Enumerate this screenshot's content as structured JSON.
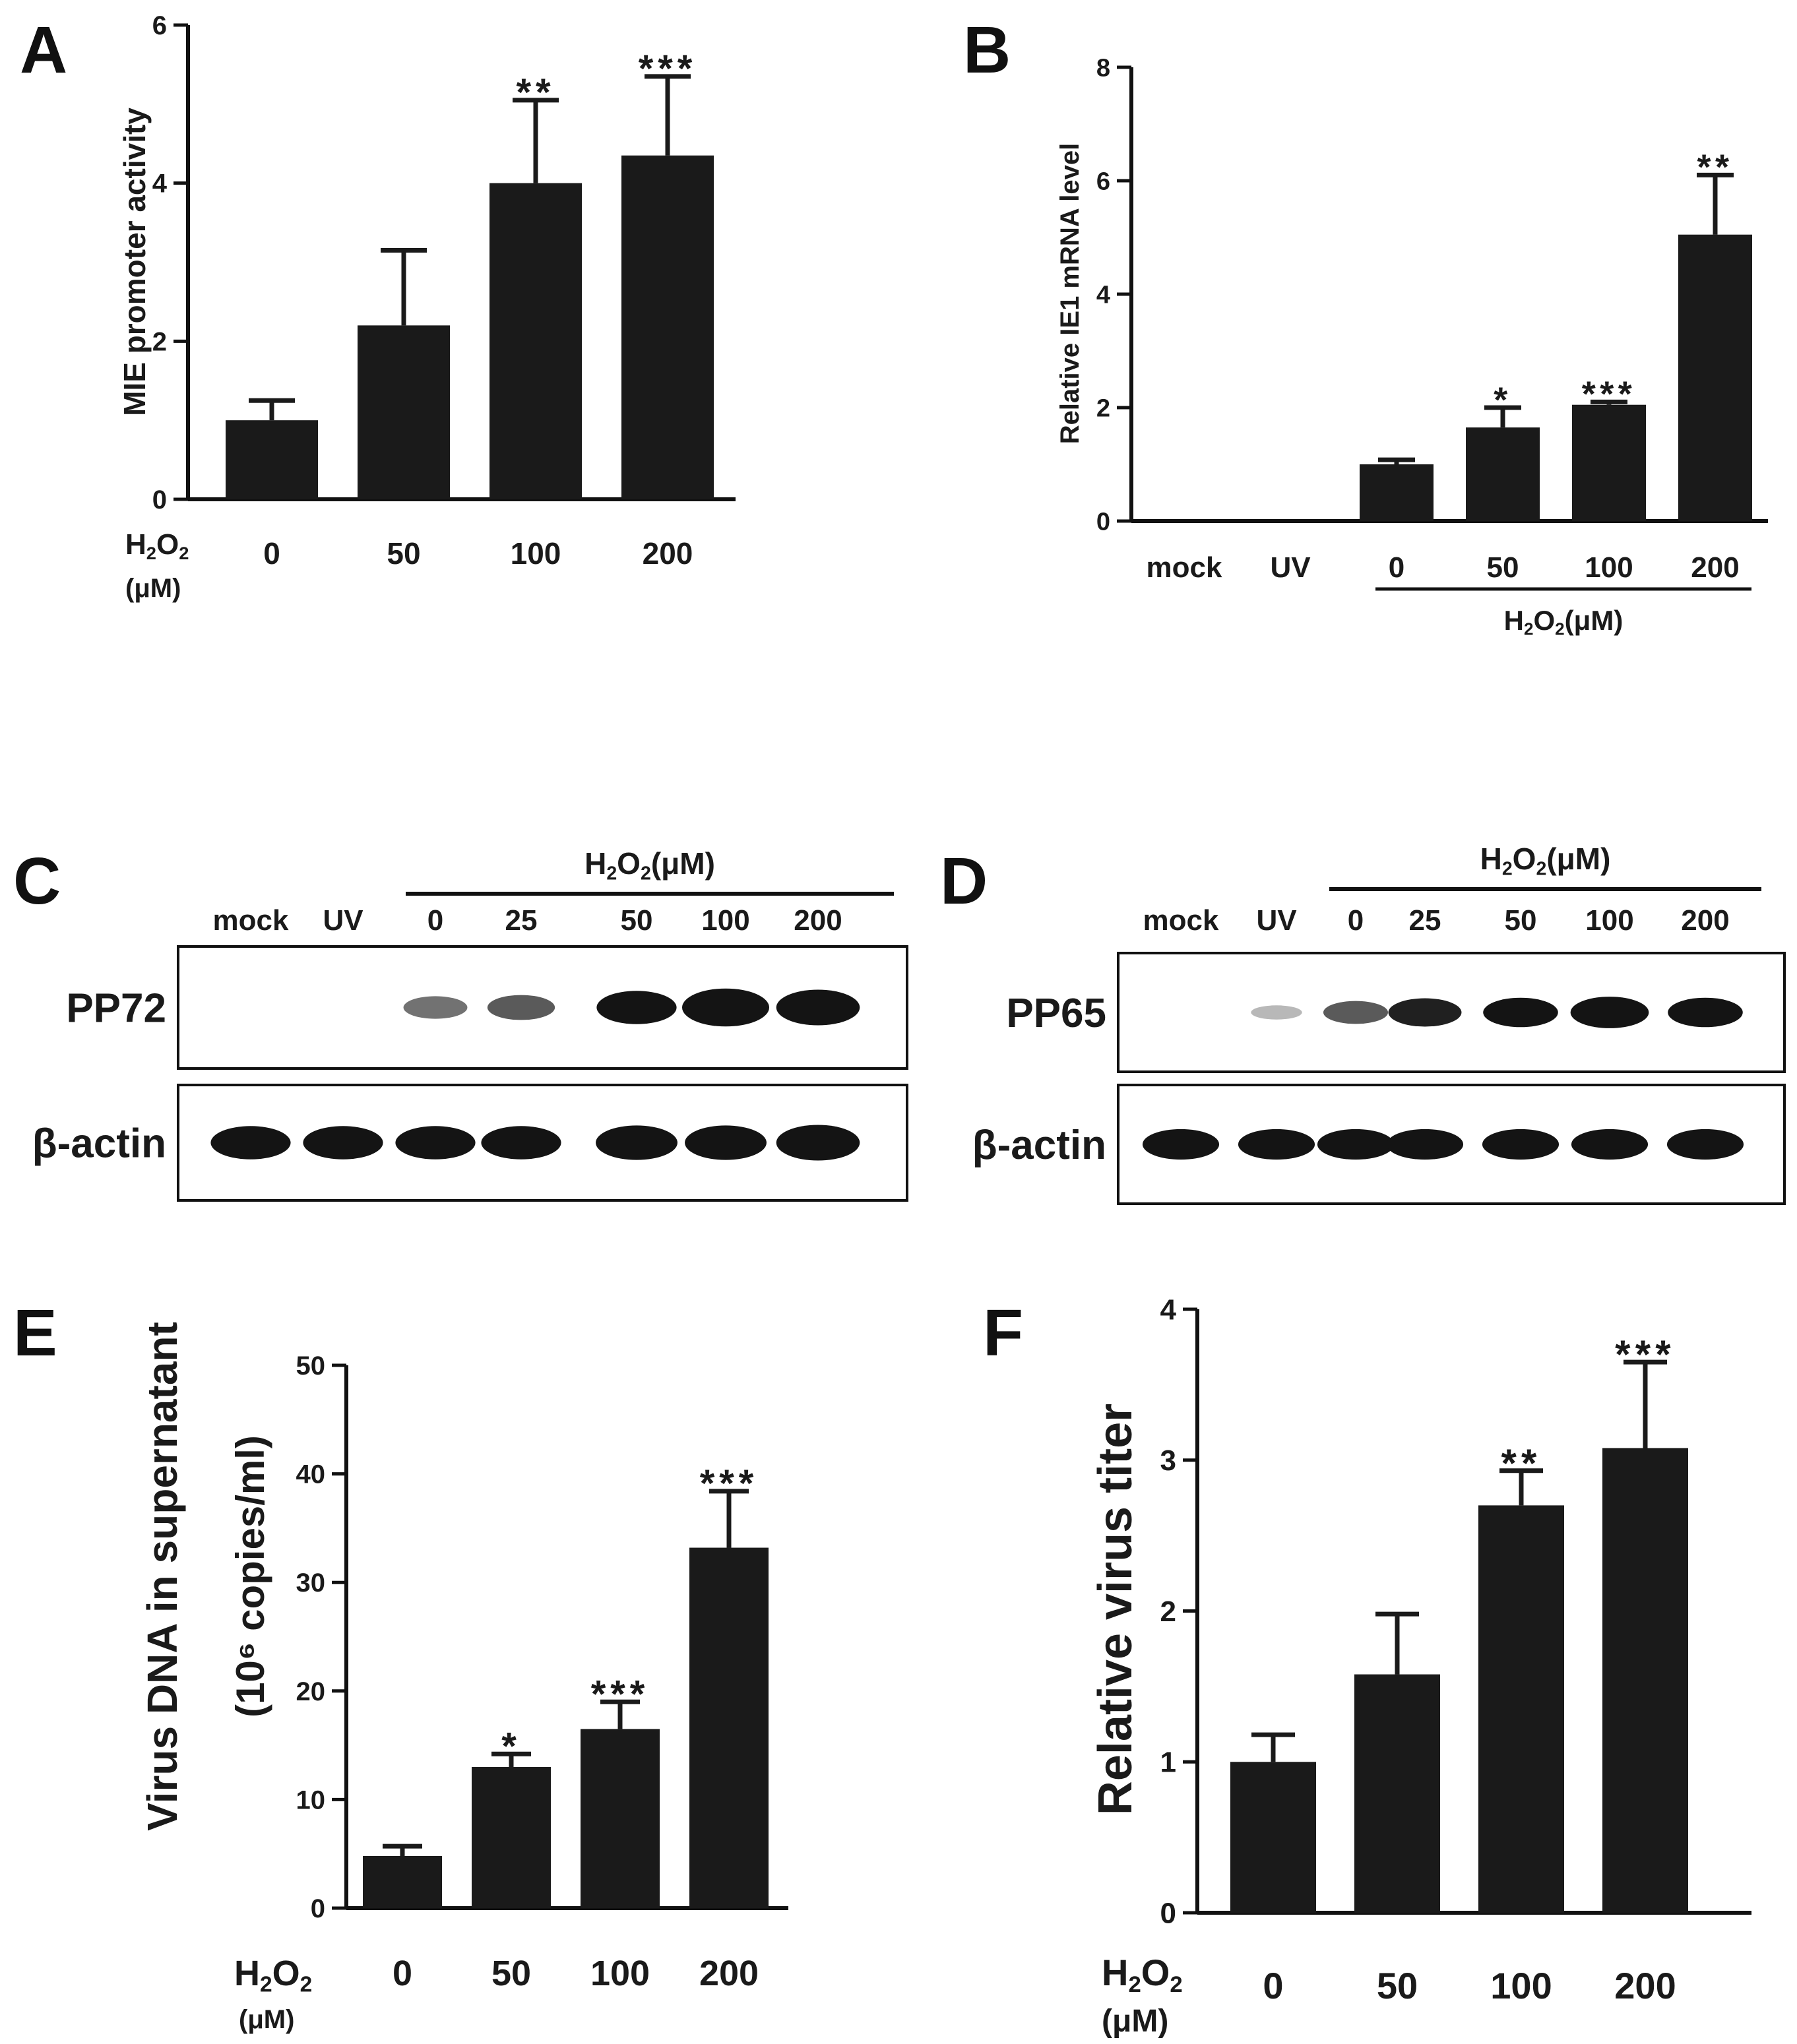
{
  "colors": {
    "bar": "#1a1a1a",
    "axis": "#111111",
    "blot_bg": "#ffffff",
    "band": "#141414"
  },
  "chart_data": [
    {
      "panel": "A",
      "type": "bar",
      "ylabel": "MIE promoter activity",
      "xlabel_line1": "H2O2",
      "xlabel_line2": "(μM)",
      "categories": [
        "0",
        "50",
        "100",
        "200"
      ],
      "values": [
        1.0,
        2.2,
        4.0,
        4.35
      ],
      "errors": [
        0.25,
        0.95,
        1.05,
        1.0
      ],
      "significance": [
        "",
        "",
        "**",
        "***"
      ],
      "ylim": [
        0,
        6
      ],
      "yticks": [
        "0",
        "2",
        "4",
        "6"
      ]
    },
    {
      "panel": "B",
      "type": "bar",
      "ylabel": "Relative IE1 mRNA level",
      "categories": [
        "mock",
        "UV",
        "0",
        "50",
        "100",
        "200"
      ],
      "values": [
        0,
        0,
        1.0,
        1.65,
        2.05,
        5.05
      ],
      "errors": [
        0,
        0,
        0.08,
        0.35,
        0.05,
        1.05
      ],
      "significance": [
        "",
        "",
        "",
        "*",
        "***",
        "**"
      ],
      "group_label": "H2O2(μM)",
      "ylim": [
        0,
        8
      ],
      "yticks": [
        "0",
        "2",
        "4",
        "6",
        "8"
      ]
    },
    {
      "panel": "E",
      "type": "bar",
      "ylabel_line1": "Virus DNA in supernatant",
      "ylabel_line2": "(10⁶ copies/ml)",
      "xlabel_line1": "H2O2",
      "xlabel_line2": "(μM)",
      "categories": [
        "0",
        "50",
        "100",
        "200"
      ],
      "values": [
        4.8,
        13.0,
        16.5,
        33.2
      ],
      "errors": [
        0.9,
        1.2,
        2.5,
        5.2
      ],
      "significance": [
        "",
        "*",
        "***",
        "***"
      ],
      "ylim": [
        0,
        50
      ],
      "yticks": [
        "0",
        "10",
        "20",
        "30",
        "40",
        "50"
      ]
    },
    {
      "panel": "F",
      "type": "bar",
      "ylabel": "Relative virus titer",
      "xlabel_line1": "H2O2",
      "xlabel_line2": "(μM)",
      "categories": [
        "0",
        "50",
        "100",
        "200"
      ],
      "values": [
        1.0,
        1.58,
        2.7,
        3.08
      ],
      "errors": [
        0.18,
        0.4,
        0.23,
        0.57
      ],
      "significance": [
        "",
        "",
        "**",
        "***"
      ],
      "ylim": [
        0,
        4
      ],
      "yticks": [
        "0",
        "1",
        "2",
        "3",
        "4"
      ]
    }
  ],
  "blots": [
    {
      "panel": "C",
      "header": "H2O2(μM)",
      "lanes": [
        "mock",
        "UV",
        "0",
        "25",
        "50",
        "100",
        "200"
      ],
      "rows": [
        {
          "label": "PP72",
          "intensity": [
            0,
            0,
            0.35,
            0.45,
            0.8,
            1.0,
            0.9
          ]
        },
        {
          "label": "β-actin",
          "intensity": [
            0.8,
            0.8,
            0.8,
            0.8,
            0.85,
            0.85,
            0.9
          ]
        }
      ]
    },
    {
      "panel": "D",
      "header": "H2O2(μM)",
      "lanes": [
        "mock",
        "UV",
        "0",
        "25",
        "50",
        "100",
        "200"
      ],
      "rows": [
        {
          "label": "PP65",
          "intensity": [
            0,
            0.05,
            0.45,
            0.7,
            0.75,
            0.85,
            0.75
          ]
        },
        {
          "label": "β-actin",
          "intensity": [
            0.8,
            0.8,
            0.8,
            0.8,
            0.8,
            0.8,
            0.8
          ]
        }
      ]
    }
  ]
}
